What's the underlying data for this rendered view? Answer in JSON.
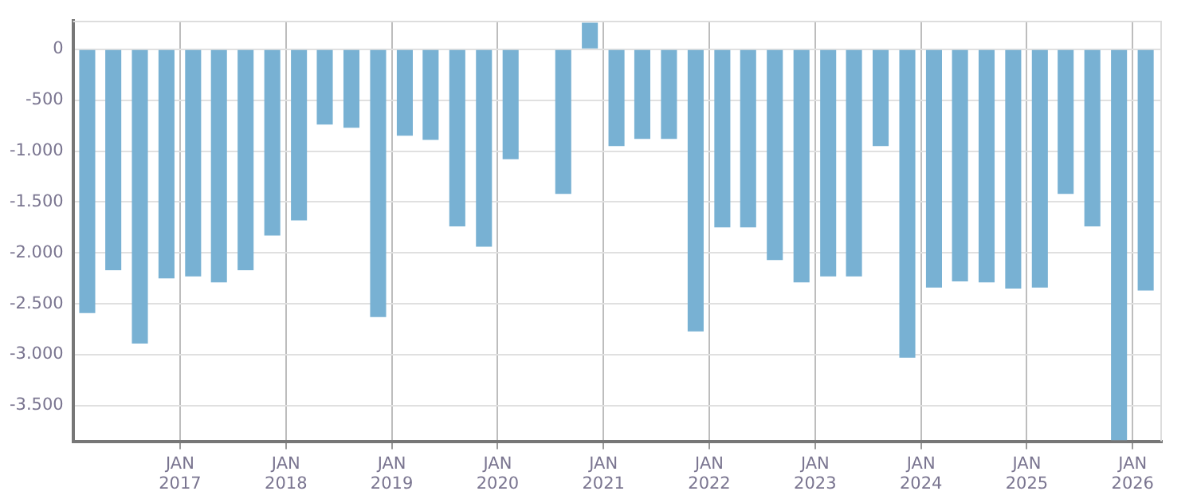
{
  "chart_data": {
    "type": "bar",
    "x": [
      "2016-02-15",
      "2016-05-15",
      "2016-08-15",
      "2016-11-15",
      "2017-02-15",
      "2017-05-15",
      "2017-08-15",
      "2017-11-15",
      "2018-02-15",
      "2018-05-15",
      "2018-08-15",
      "2018-11-15",
      "2019-02-15",
      "2019-05-15",
      "2019-08-15",
      "2019-11-15",
      "2020-02-15",
      "2020-05-15",
      "2020-08-15",
      "2020-11-15",
      "2021-02-15",
      "2021-05-15",
      "2021-08-15",
      "2021-11-15",
      "2022-02-15",
      "2022-05-15",
      "2022-08-15",
      "2022-11-15",
      "2023-02-15",
      "2023-05-15",
      "2023-08-15",
      "2023-11-15",
      "2024-02-15",
      "2024-05-15",
      "2024-08-15",
      "2024-11-15",
      "2025-02-15",
      "2025-05-15",
      "2025-08-15",
      "2025-11-15",
      "2026-02-15"
    ],
    "series": [
      {
        "color": "#78b1d3",
        "values": [
          -2590,
          -2170,
          -2890,
          -2250,
          -2230,
          -2290,
          -2170,
          -1830,
          -1680,
          -740,
          -770,
          -2630,
          -850,
          -890,
          -1740,
          -1940,
          -1080,
          null,
          -1420,
          260,
          -950,
          -880,
          -880,
          -2770,
          -1750,
          -1750,
          -2070,
          -2290,
          -2230,
          -2230,
          -950,
          -3030,
          -2340,
          -2280,
          -2290,
          -2350,
          -2340,
          -1420,
          -1740,
          -3840,
          -2370
        ]
      }
    ],
    "xlim": [
      "2015-12-28",
      "2026-04-12"
    ],
    "xticks": [
      {
        "value": "2017-01-01",
        "label": "JAN 2017"
      },
      {
        "value": "2018-01-01",
        "label": "JAN 2018"
      },
      {
        "value": "2019-01-01",
        "label": "JAN 2019"
      },
      {
        "value": "2020-01-01",
        "label": "JAN 2020"
      },
      {
        "value": "2021-01-01",
        "label": "JAN 2021"
      },
      {
        "value": "2022-01-01",
        "label": "JAN 2022"
      },
      {
        "value": "2023-01-01",
        "label": "JAN 2023"
      },
      {
        "value": "2024-01-01",
        "label": "JAN 2024"
      },
      {
        "value": "2025-01-01",
        "label": "JAN 2025"
      },
      {
        "value": "2026-01-01",
        "label": "JAN 2026"
      }
    ],
    "ylim": [
      -3850,
      280
    ],
    "yticks": [
      0,
      {
        "value": -500,
        "label": "-500"
      },
      {
        "value": -1000,
        "label": "-1.000"
      },
      {
        "value": -1500,
        "label": "-1.500"
      },
      {
        "value": -2000,
        "label": "-2.000"
      },
      {
        "value": -2500,
        "label": "-2.500"
      },
      {
        "value": -3000,
        "label": "-3.000"
      },
      {
        "value": -3500,
        "label": "-3.500"
      }
    ],
    "grid": true
  }
}
